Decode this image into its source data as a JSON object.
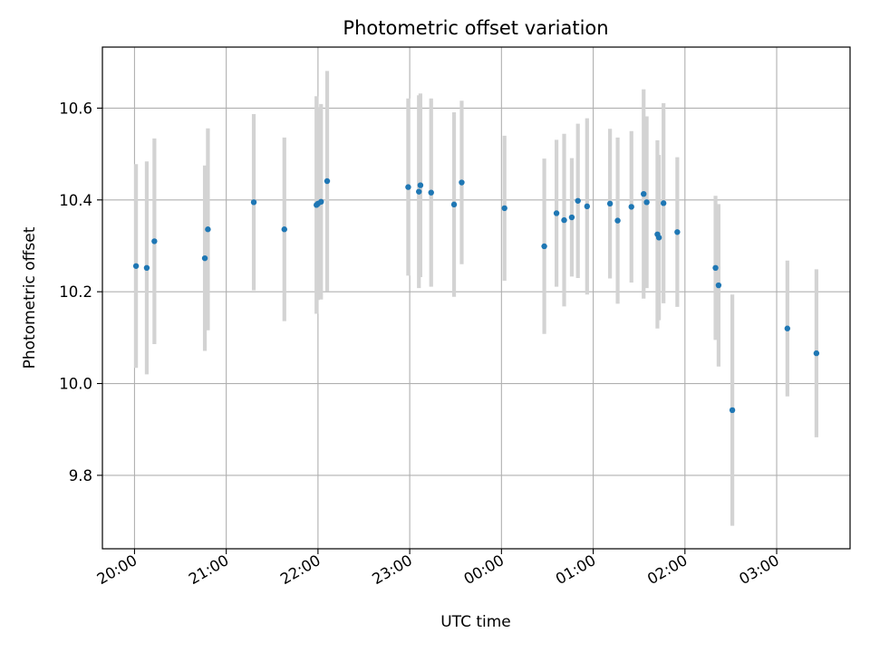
{
  "chart_data": {
    "type": "scatter",
    "title": "Photometric offset variation",
    "xlabel": "UTC time",
    "ylabel": "Photometric offset",
    "x_axis_type": "time",
    "xlim": [
      "19:39",
      "03:48"
    ],
    "ylim": [
      9.64,
      10.733
    ],
    "x_ticks": [
      "20:00",
      "21:00",
      "22:00",
      "23:00",
      "00:00",
      "01:00",
      "02:00",
      "03:00"
    ],
    "y_ticks": [
      "9.8",
      "10.0",
      "10.2",
      "10.4",
      "10.6"
    ],
    "grid": true,
    "legend": "none",
    "colors": {
      "point": "#1f77b4",
      "errorbar": "#d3d3d3",
      "grid": "#b0b0b0"
    },
    "points": [
      {
        "x": "20:01",
        "y": 10.256,
        "yerr": 0.222
      },
      {
        "x": "20:08",
        "y": 10.252,
        "yerr": 0.232
      },
      {
        "x": "20:13",
        "y": 10.31,
        "yerr": 0.224
      },
      {
        "x": "20:46",
        "y": 10.273,
        "yerr": 0.202
      },
      {
        "x": "20:48",
        "y": 10.336,
        "yerr": 0.22
      },
      {
        "x": "21:18",
        "y": 10.395,
        "yerr": 0.192
      },
      {
        "x": "21:38",
        "y": 10.336,
        "yerr": 0.2
      },
      {
        "x": "21:59",
        "y": 10.389,
        "yerr": 0.237
      },
      {
        "x": "22:00",
        "y": 10.392,
        "yerr": 0.21
      },
      {
        "x": "22:02",
        "y": 10.396,
        "yerr": 0.213
      },
      {
        "x": "22:06",
        "y": 10.441,
        "yerr": 0.24
      },
      {
        "x": "22:59",
        "y": 10.428,
        "yerr": 0.193
      },
      {
        "x": "23:06",
        "y": 10.418,
        "yerr": 0.21
      },
      {
        "x": "23:07",
        "y": 10.432,
        "yerr": 0.2
      },
      {
        "x": "23:14",
        "y": 10.416,
        "yerr": 0.205
      },
      {
        "x": "23:29",
        "y": 10.39,
        "yerr": 0.201
      },
      {
        "x": "23:34",
        "y": 10.438,
        "yerr": 0.178
      },
      {
        "x": "00:02",
        "y": 10.382,
        "yerr": 0.158
      },
      {
        "x": "00:28",
        "y": 10.299,
        "yerr": 0.191
      },
      {
        "x": "00:36",
        "y": 10.371,
        "yerr": 0.16
      },
      {
        "x": "00:41",
        "y": 10.356,
        "yerr": 0.188
      },
      {
        "x": "00:46",
        "y": 10.362,
        "yerr": 0.129
      },
      {
        "x": "00:50",
        "y": 10.398,
        "yerr": 0.168
      },
      {
        "x": "00:56",
        "y": 10.386,
        "yerr": 0.192
      },
      {
        "x": "01:11",
        "y": 10.392,
        "yerr": 0.163
      },
      {
        "x": "01:16",
        "y": 10.355,
        "yerr": 0.181
      },
      {
        "x": "01:25",
        "y": 10.385,
        "yerr": 0.165
      },
      {
        "x": "01:33",
        "y": 10.413,
        "yerr": 0.228
      },
      {
        "x": "01:35",
        "y": 10.395,
        "yerr": 0.187
      },
      {
        "x": "01:42",
        "y": 10.325,
        "yerr": 0.205
      },
      {
        "x": "01:43",
        "y": 10.318,
        "yerr": 0.18
      },
      {
        "x": "01:46",
        "y": 10.393,
        "yerr": 0.218
      },
      {
        "x": "01:55",
        "y": 10.33,
        "yerr": 0.163
      },
      {
        "x": "02:20",
        "y": 10.252,
        "yerr": 0.157
      },
      {
        "x": "02:22",
        "y": 10.214,
        "yerr": 0.177
      },
      {
        "x": "02:31",
        "y": 9.942,
        "yerr": 0.252
      },
      {
        "x": "03:07",
        "y": 10.12,
        "yerr": 0.148
      },
      {
        "x": "03:26",
        "y": 10.066,
        "yerr": 0.183
      }
    ]
  }
}
